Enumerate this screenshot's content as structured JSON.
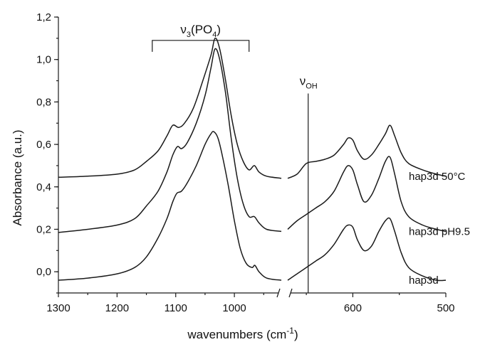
{
  "chart_data": {
    "type": "line",
    "xlabel": "wavenumbers (cm",
    "xlabel_sup": "-1",
    "xlabel_close": ")",
    "ylabel": "Absorbance (a.u.)",
    "ylim": [
      -0.1,
      1.2
    ],
    "x_ticks": [
      1300,
      1200,
      1100,
      1000,
      600,
      500
    ],
    "x_tick_labels": [
      "1300",
      "1200",
      "1100",
      "1000",
      "600",
      "500"
    ],
    "y_ticks": [
      0.0,
      0.2,
      0.4,
      0.6,
      0.8,
      1.0,
      1.2
    ],
    "y_tick_labels": [
      "0,0",
      "0,2",
      "0,4",
      "0,6",
      "0,8",
      "1,0",
      "1,2"
    ],
    "x_axis_break": true,
    "segments": [
      {
        "xlim": [
          1300,
          920
        ]
      },
      {
        "xlim": [
          670,
          500
        ]
      }
    ],
    "series": [
      {
        "name": "hap3d 50°C",
        "points_left": [
          [
            1300,
            0.445
          ],
          [
            1250,
            0.45
          ],
          [
            1200,
            0.46
          ],
          [
            1170,
            0.48
          ],
          [
            1150,
            0.52
          ],
          [
            1130,
            0.57
          ],
          [
            1115,
            0.64
          ],
          [
            1105,
            0.69
          ],
          [
            1095,
            0.68
          ],
          [
            1085,
            0.7
          ],
          [
            1070,
            0.77
          ],
          [
            1055,
            0.89
          ],
          [
            1040,
            1.02
          ],
          [
            1033,
            1.1
          ],
          [
            1025,
            1.05
          ],
          [
            1015,
            0.9
          ],
          [
            1005,
            0.73
          ],
          [
            995,
            0.6
          ],
          [
            985,
            0.52
          ],
          [
            975,
            0.48
          ],
          [
            966,
            0.5
          ],
          [
            958,
            0.47
          ],
          [
            945,
            0.45
          ],
          [
            920,
            0.44
          ]
        ],
        "points_right": [
          [
            670,
            0.44
          ],
          [
            660,
            0.46
          ],
          [
            650,
            0.51
          ],
          [
            640,
            0.52
          ],
          [
            630,
            0.53
          ],
          [
            620,
            0.55
          ],
          [
            610,
            0.6
          ],
          [
            605,
            0.63
          ],
          [
            600,
            0.62
          ],
          [
            595,
            0.57
          ],
          [
            588,
            0.53
          ],
          [
            580,
            0.55
          ],
          [
            572,
            0.6
          ],
          [
            565,
            0.65
          ],
          [
            560,
            0.69
          ],
          [
            555,
            0.64
          ],
          [
            548,
            0.56
          ],
          [
            540,
            0.51
          ],
          [
            525,
            0.48
          ],
          [
            510,
            0.46
          ],
          [
            500,
            0.45
          ]
        ]
      },
      {
        "name": "hap3d pH9.5",
        "points_left": [
          [
            1300,
            0.185
          ],
          [
            1250,
            0.2
          ],
          [
            1200,
            0.22
          ],
          [
            1170,
            0.25
          ],
          [
            1150,
            0.31
          ],
          [
            1130,
            0.38
          ],
          [
            1115,
            0.47
          ],
          [
            1105,
            0.55
          ],
          [
            1097,
            0.59
          ],
          [
            1090,
            0.58
          ],
          [
            1080,
            0.61
          ],
          [
            1065,
            0.7
          ],
          [
            1050,
            0.83
          ],
          [
            1040,
            0.96
          ],
          [
            1033,
            1.05
          ],
          [
            1025,
            1.0
          ],
          [
            1015,
            0.84
          ],
          [
            1005,
            0.62
          ],
          [
            995,
            0.44
          ],
          [
            985,
            0.32
          ],
          [
            975,
            0.26
          ],
          [
            966,
            0.26
          ],
          [
            958,
            0.23
          ],
          [
            945,
            0.2
          ],
          [
            920,
            0.19
          ]
        ],
        "points_right": [
          [
            670,
            0.2
          ],
          [
            660,
            0.24
          ],
          [
            650,
            0.27
          ],
          [
            640,
            0.3
          ],
          [
            630,
            0.33
          ],
          [
            620,
            0.38
          ],
          [
            610,
            0.47
          ],
          [
            605,
            0.5
          ],
          [
            600,
            0.48
          ],
          [
            595,
            0.41
          ],
          [
            588,
            0.33
          ],
          [
            580,
            0.36
          ],
          [
            572,
            0.44
          ],
          [
            565,
            0.52
          ],
          [
            560,
            0.54
          ],
          [
            555,
            0.46
          ],
          [
            548,
            0.33
          ],
          [
            540,
            0.26
          ],
          [
            525,
            0.22
          ],
          [
            510,
            0.2
          ],
          [
            500,
            0.19
          ]
        ]
      },
      {
        "name": "hap3d",
        "points_left": [
          [
            1300,
            -0.04
          ],
          [
            1250,
            -0.03
          ],
          [
            1200,
            -0.01
          ],
          [
            1170,
            0.02
          ],
          [
            1150,
            0.07
          ],
          [
            1130,
            0.16
          ],
          [
            1115,
            0.25
          ],
          [
            1105,
            0.33
          ],
          [
            1098,
            0.37
          ],
          [
            1090,
            0.38
          ],
          [
            1080,
            0.42
          ],
          [
            1065,
            0.5
          ],
          [
            1050,
            0.6
          ],
          [
            1040,
            0.65
          ],
          [
            1035,
            0.66
          ],
          [
            1028,
            0.63
          ],
          [
            1020,
            0.54
          ],
          [
            1010,
            0.4
          ],
          [
            1000,
            0.24
          ],
          [
            990,
            0.11
          ],
          [
            980,
            0.04
          ],
          [
            970,
            0.02
          ],
          [
            965,
            0.03
          ],
          [
            958,
            0.0
          ],
          [
            945,
            -0.03
          ],
          [
            920,
            -0.04
          ]
        ],
        "points_right": [
          [
            670,
            -0.04
          ],
          [
            660,
            -0.01
          ],
          [
            650,
            0.02
          ],
          [
            640,
            0.05
          ],
          [
            630,
            0.08
          ],
          [
            620,
            0.13
          ],
          [
            610,
            0.2
          ],
          [
            605,
            0.22
          ],
          [
            600,
            0.21
          ],
          [
            595,
            0.15
          ],
          [
            588,
            0.1
          ],
          [
            580,
            0.12
          ],
          [
            572,
            0.19
          ],
          [
            565,
            0.24
          ],
          [
            560,
            0.25
          ],
          [
            555,
            0.19
          ],
          [
            548,
            0.09
          ],
          [
            540,
            0.02
          ],
          [
            525,
            -0.02
          ],
          [
            510,
            -0.04
          ],
          [
            500,
            -0.04
          ]
        ]
      }
    ],
    "annotations": [
      {
        "text": "ν",
        "sub": "3",
        "rest": "(PO",
        "sub2": "4",
        "close": ")",
        "bracket_from": 1140,
        "bracket_to": 975,
        "bracket_y": 1.09
      },
      {
        "text": "ν",
        "sub": "OH",
        "line_x": 648
      }
    ]
  }
}
